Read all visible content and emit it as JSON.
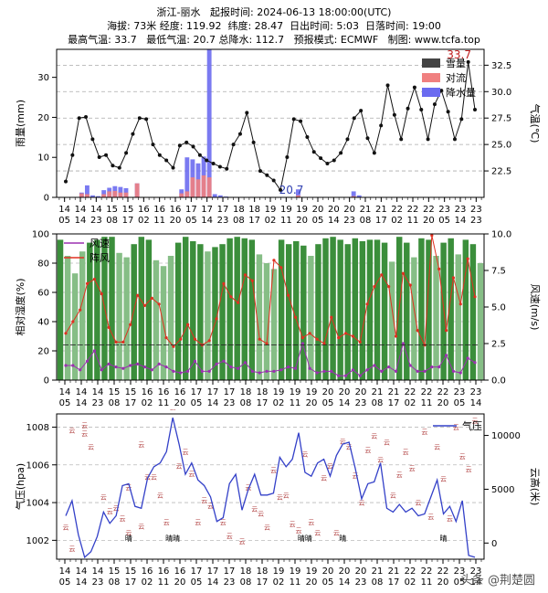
{
  "header": {
    "line1": "浙江-丽水   起报时间: 2024-06-13 18:00:00(UTC)",
    "line2": "海拔: 73米 经度: 119.92  纬度: 28.47  日出时间: 5:03  日落时间: 19:00",
    "line3": "最高气温: 33.7   最低气温: 20.7 总降水: 112.7   预报模式: ECMWF   制图: www.tcfa.top"
  },
  "watermark": "头条 @荆楚圆",
  "chart_data": [
    {
      "type": "bar",
      "ylabel": "雨量(mm)",
      "ylabel_right": "气温(℃)",
      "ylim": [
        0,
        37
      ],
      "yticks": [
        0,
        10,
        20,
        30
      ],
      "ylim_right": [
        20,
        34
      ],
      "yticks_right": [
        "22.5",
        "25.0",
        "27.5",
        "30.0",
        "32.5"
      ],
      "x_labels": [
        [
          "14",
          "05"
        ],
        [
          "14",
          "14"
        ],
        [
          "14",
          "23"
        ],
        [
          "15",
          "08"
        ],
        [
          "15",
          "17"
        ],
        [
          "16",
          "02"
        ],
        [
          "16",
          "11"
        ],
        [
          "16",
          "20"
        ],
        [
          "17",
          "05"
        ],
        [
          "17",
          "14"
        ],
        [
          "17",
          "23"
        ],
        [
          "18",
          "08"
        ],
        [
          "18",
          "17"
        ],
        [
          "19",
          "02"
        ],
        [
          "19",
          "11"
        ],
        [
          "19",
          "20"
        ],
        [
          "20",
          "05"
        ],
        [
          "20",
          "14"
        ],
        [
          "20",
          "23"
        ],
        [
          "21",
          "08"
        ],
        [
          "21",
          "17"
        ],
        [
          "22",
          "02"
        ],
        [
          "22",
          "11"
        ],
        [
          "22",
          "20"
        ],
        [
          "23",
          "05"
        ],
        [
          "23",
          "14"
        ],
        [
          "23",
          "23"
        ]
      ],
      "legend": [
        "雪量",
        "对流",
        "降水量"
      ],
      "legend_colors": [
        "#444444",
        "#f08080",
        "#6b6bf0"
      ],
      "max_label": "33.7",
      "min_label": "20.7",
      "precip": [
        0,
        0,
        0,
        0,
        1.2,
        3,
        0.5,
        0.3,
        1.8,
        2.4,
        2.8,
        2.6,
        2.3,
        0,
        3.5,
        0,
        0,
        0,
        0,
        0,
        0,
        0,
        2,
        10,
        9.5,
        8.5,
        10.2,
        37,
        0.8,
        0.5,
        0.2,
        0,
        0,
        0,
        0,
        0,
        0,
        0,
        0,
        0,
        0,
        0,
        0,
        2,
        0,
        0,
        0,
        0,
        0,
        0,
        0,
        0,
        0,
        1.5,
        0.5,
        0,
        0,
        0,
        0,
        0,
        0,
        0,
        0,
        0,
        0,
        0,
        0,
        0,
        0,
        0,
        0,
        0,
        0,
        0,
        0,
        0,
        0
      ],
      "convective": [
        0,
        0,
        0,
        0,
        1,
        0.8,
        0,
        0,
        0.8,
        1.5,
        1.6,
        1.2,
        1.2,
        0,
        3.5,
        0,
        0,
        0,
        0,
        0,
        0,
        0,
        1,
        1.5,
        5,
        4.5,
        5.5,
        5,
        0,
        0,
        0,
        0,
        0,
        0,
        0,
        0,
        0,
        0,
        0,
        0,
        0,
        0,
        0,
        0.5,
        0,
        0,
        0,
        0,
        0,
        0,
        0,
        0,
        0,
        0.3,
        0,
        0,
        0,
        0,
        0,
        0,
        0,
        0,
        0,
        0,
        0,
        0,
        0,
        0,
        0,
        0,
        0,
        0,
        0,
        0,
        0
      ],
      "temperature": [
        21.5,
        24,
        27.5,
        27.6,
        25.5,
        23.8,
        24,
        23,
        22.8,
        24.2,
        26,
        27.5,
        27.4,
        25,
        24,
        23.5,
        22.8,
        24.9,
        25.2,
        24.8,
        24,
        23.5,
        23.2,
        22.9,
        22.7,
        25,
        26,
        28,
        25.2,
        22.5,
        22.1,
        21.6,
        20.7,
        23.8,
        27.4,
        27.2,
        25.7,
        24.3,
        23.7,
        23.2,
        23.5,
        24.2,
        25.5,
        27.5,
        28.2,
        25.6,
        24.2,
        26.8,
        30.6,
        27.8,
        25.5,
        28.4,
        30.4,
        28.3,
        25.5,
        28.8,
        30.1,
        28.1,
        25.5,
        27.4,
        32.8,
        28.3
      ]
    },
    {
      "type": "bar",
      "ylabel": "相对湿度(%)",
      "ylabel_right": "风速(m/s)",
      "ylim": [
        0,
        100
      ],
      "yticks": [
        0,
        20,
        40,
        60,
        80,
        100
      ],
      "ylim_right": [
        0,
        10
      ],
      "yticks_right": [
        "0.0",
        "2.5",
        "5.0",
        "7.5",
        "10.0"
      ],
      "x_labels": [
        [
          "14",
          "05"
        ],
        [
          "14",
          "14"
        ],
        [
          "14",
          "23"
        ],
        [
          "15",
          "08"
        ],
        [
          "15",
          "17"
        ],
        [
          "16",
          "02"
        ],
        [
          "16",
          "11"
        ],
        [
          "16",
          "20"
        ],
        [
          "17",
          "05"
        ],
        [
          "17",
          "14"
        ],
        [
          "17",
          "23"
        ],
        [
          "18",
          "08"
        ],
        [
          "18",
          "17"
        ],
        [
          "19",
          "02"
        ],
        [
          "19",
          "11"
        ],
        [
          "19",
          "20"
        ],
        [
          "20",
          "05"
        ],
        [
          "20",
          "14"
        ],
        [
          "20",
          "23"
        ],
        [
          "21",
          "08"
        ],
        [
          "21",
          "17"
        ],
        [
          "22",
          "02"
        ],
        [
          "22",
          "11"
        ],
        [
          "22",
          "20"
        ],
        [
          "23",
          "05"
        ],
        [
          "23",
          "14"
        ]
      ],
      "legend": [
        "风速",
        "阵风"
      ],
      "legend_colors": [
        "#9b30b0",
        "#e03020"
      ],
      "humidity": [
        96,
        85,
        73,
        88,
        94,
        96,
        98,
        98,
        87,
        84,
        93,
        98,
        96,
        82,
        78,
        85,
        94,
        98,
        95,
        93,
        88,
        91,
        93,
        97,
        98,
        97,
        96,
        86,
        80,
        76,
        96,
        93,
        95,
        92,
        85,
        93,
        97,
        98,
        96,
        93,
        97,
        95,
        96,
        96,
        94,
        81,
        98,
        94,
        84,
        97,
        96,
        85,
        94,
        97,
        86,
        96,
        93,
        80
      ],
      "wind": [
        1,
        1,
        0.7,
        1.3,
        2,
        0.7,
        1.1,
        0.9,
        0.8,
        1,
        1.1,
        0.9,
        0.7,
        1.1,
        0.9,
        0.6,
        0.5,
        0.6,
        1.3,
        0.6,
        0.6,
        1.1,
        1.3,
        0.9,
        0.8,
        1.2,
        0.6,
        0.5,
        0.6,
        0.6,
        0.7,
        0.9,
        0.8,
        2.5,
        0.8,
        0.5,
        0.6,
        0.6,
        0.3,
        0.3,
        0.7,
        0.3,
        0.7,
        1,
        0.6,
        0.9,
        0.6,
        2.5,
        1,
        0.6,
        0.6,
        0.9,
        0.9,
        1.7,
        0.6,
        0.5,
        1.5,
        1.2
      ],
      "gust": [
        3.2,
        4,
        4.8,
        6.6,
        6.9,
        5.9,
        3.6,
        2.6,
        2.6,
        3.8,
        5.8,
        5.1,
        5.6,
        5.2,
        2.9,
        2.3,
        2.8,
        3.8,
        2.8,
        2.4,
        2.7,
        4.2,
        6.6,
        5.7,
        5.3,
        7.2,
        6.8,
        2.8,
        2.5,
        8.2,
        7.7,
        5.8,
        4.3,
        2.9,
        3.2,
        2.8,
        2.5,
        4.3,
        2.9,
        3.2,
        3,
        2.6,
        5.2,
        6.4,
        7.2,
        6.4,
        3,
        7.3,
        6.5,
        3.4,
        2.4,
        9.9,
        7.6,
        3.4,
        7,
        5.2,
        8.3,
        5.7
      ]
    },
    {
      "type": "line",
      "ylabel": "气压(hpa)",
      "ylabel_right": "云高(米)",
      "ylim": [
        1001,
        1008.7
      ],
      "yticks": [
        1002,
        1004,
        1006,
        1008
      ],
      "ylim_right": [
        -1500,
        12000
      ],
      "yticks_right": [
        0,
        5000,
        10000
      ],
      "x_labels": [
        [
          "14",
          "05"
        ],
        [
          "14",
          "14"
        ],
        [
          "14",
          "23"
        ],
        [
          "15",
          "08"
        ],
        [
          "15",
          "17"
        ],
        [
          "16",
          "02"
        ],
        [
          "16",
          "11"
        ],
        [
          "16",
          "20"
        ],
        [
          "17",
          "05"
        ],
        [
          "17",
          "14"
        ],
        [
          "17",
          "23"
        ],
        [
          "18",
          "08"
        ],
        [
          "18",
          "17"
        ],
        [
          "19",
          "02"
        ],
        [
          "19",
          "11"
        ],
        [
          "19",
          "20"
        ],
        [
          "20",
          "05"
        ],
        [
          "20",
          "14"
        ],
        [
          "20",
          "23"
        ],
        [
          "21",
          "08"
        ],
        [
          "21",
          "17"
        ],
        [
          "22",
          "02"
        ],
        [
          "22",
          "11"
        ],
        [
          "22",
          "20"
        ],
        [
          "23",
          "05"
        ],
        [
          "23",
          "14"
        ]
      ],
      "legend": [
        "气压"
      ],
      "legend_colors": [
        "#3340c8"
      ],
      "pressure": [
        1003.3,
        1004.1,
        1002.3,
        1001.1,
        1001.4,
        1002.2,
        1003.5,
        1002.9,
        1003.3,
        1004.9,
        1005,
        1003.8,
        1003.7,
        1005.3,
        1005.9,
        1006.1,
        1006.7,
        1008.5,
        1007.1,
        1005.5,
        1006.1,
        1005.2,
        1004.9,
        1004.3,
        1003,
        1003.2,
        1005,
        1005.5,
        1003.6,
        1004.7,
        1005.5,
        1004.4,
        1004.4,
        1004.5,
        1006.4,
        1005.9,
        1006.3,
        1007.7,
        1005.6,
        1005.4,
        1006.1,
        1006.3,
        1005.4,
        1006.5,
        1007.1,
        1007.2,
        1005.8,
        1004.2,
        1005,
        1005.1,
        1006.1,
        1003.7,
        1003.5,
        1003.9,
        1003.5,
        1003.7,
        1003.3,
        1003.4,
        1004.3,
        1005.2,
        1003.4,
        1003.8,
        1003,
        1004.1,
        1001.2,
        1001.1
      ],
      "cloud_points": [
        [
          0,
          1500
        ],
        [
          1,
          -500
        ],
        [
          1,
          10500
        ],
        [
          3,
          10200
        ],
        [
          3,
          11000
        ],
        [
          4,
          9000
        ],
        [
          6,
          4300
        ],
        [
          7,
          3000
        ],
        [
          8,
          3300
        ],
        [
          9,
          2300
        ],
        [
          10,
          1000
        ],
        [
          10,
          5200
        ],
        [
          12,
          1600
        ],
        [
          12,
          9200
        ],
        [
          13,
          6200
        ],
        [
          14,
          6200
        ],
        [
          15,
          4500
        ],
        [
          16,
          2000
        ],
        [
          16,
          12800
        ],
        [
          17,
          12700
        ],
        [
          18,
          7200
        ],
        [
          19,
          8500
        ],
        [
          20,
          6500
        ],
        [
          21,
          2000
        ],
        [
          22,
          4000
        ],
        [
          23,
          3500
        ],
        [
          25,
          2000
        ],
        [
          26,
          700
        ],
        [
          28,
          200
        ],
        [
          29,
          5200
        ],
        [
          30,
          3200
        ],
        [
          31,
          2800
        ],
        [
          32,
          1500
        ],
        [
          33,
          6800
        ],
        [
          34,
          4300
        ],
        [
          35,
          4500
        ],
        [
          36,
          1800
        ],
        [
          37,
          1200
        ],
        [
          38,
          8300
        ],
        [
          39,
          2000
        ],
        [
          40,
          1000
        ],
        [
          41,
          6100
        ],
        [
          42,
          7200
        ],
        [
          43,
          1000
        ],
        [
          44,
          9500
        ],
        [
          45,
          9000
        ],
        [
          46,
          6300
        ],
        [
          47,
          3800
        ],
        [
          48,
          8700
        ],
        [
          49,
          10000
        ],
        [
          50,
          7800
        ],
        [
          51,
          9400
        ],
        [
          52,
          4500
        ],
        [
          53,
          6400
        ],
        [
          54,
          8500
        ],
        [
          55,
          7000
        ],
        [
          56,
          3800
        ],
        [
          57,
          10400
        ],
        [
          58,
          2500
        ],
        [
          59,
          9000
        ],
        [
          60,
          6000
        ],
        [
          61,
          2300
        ],
        [
          62,
          10800
        ],
        [
          63,
          8100
        ],
        [
          64,
          6900
        ],
        [
          65,
          11400
        ]
      ],
      "cloud_symbol": "云",
      "sunny_labels": [
        {
          "i": 10,
          "label": "晴"
        },
        {
          "i": 17,
          "label": "晴晴"
        },
        {
          "i": 38,
          "label": "晴晴"
        },
        {
          "i": 44,
          "label": "晴"
        },
        {
          "i": 60,
          "label": "晴"
        }
      ]
    }
  ]
}
